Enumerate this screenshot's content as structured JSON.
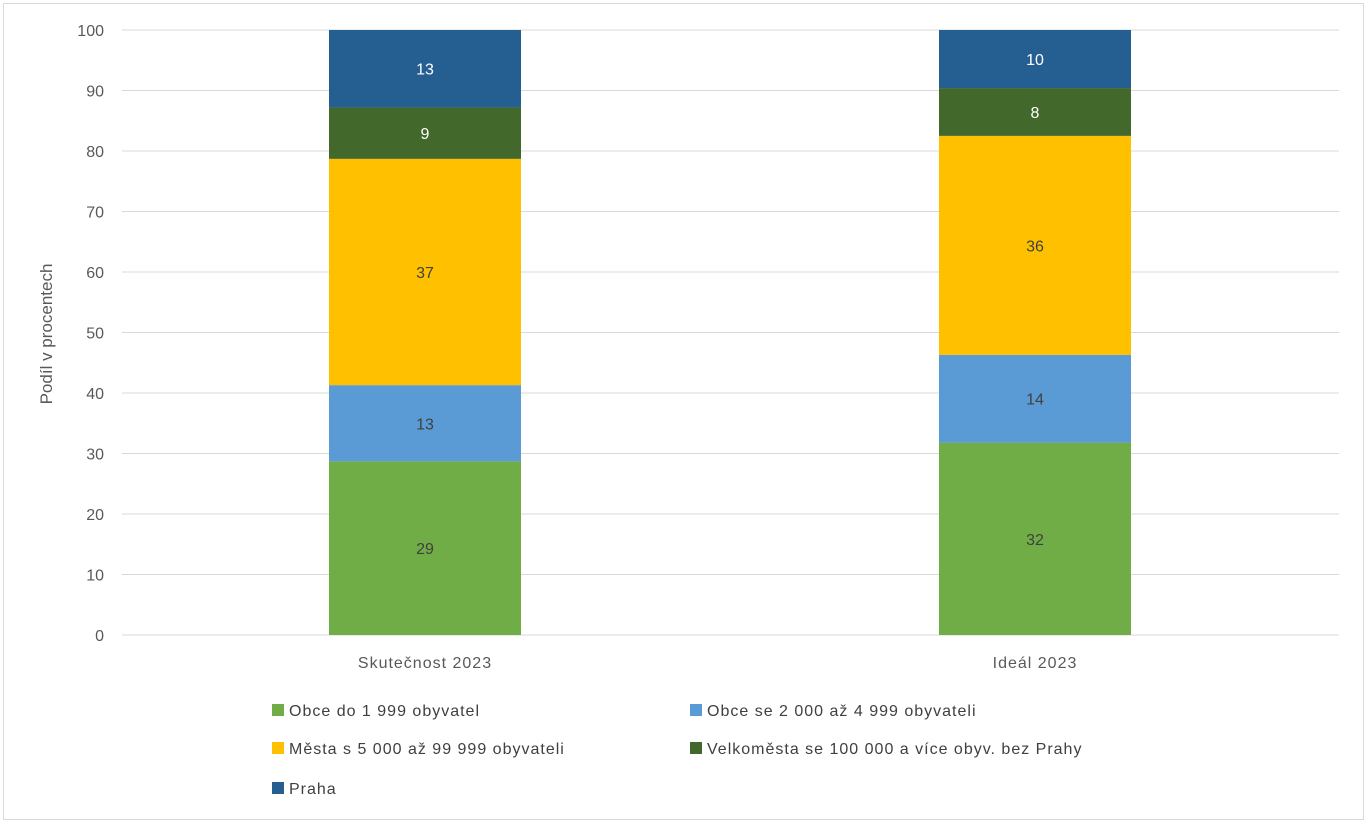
{
  "chart_data": {
    "type": "bar",
    "stacked": true,
    "categories": [
      "Skutečnost 2023",
      "Ideál 2023"
    ],
    "series": [
      {
        "name": "Obce do 1 999 obyvatel",
        "values": [
          29,
          32
        ],
        "color": "#70AD47",
        "label_color": "#404040"
      },
      {
        "name": "Obce se 2 000 až 4 999 obyvateli",
        "values": [
          13,
          14
        ],
        "color": "#5B9BD5",
        "label_color": "#404040"
      },
      {
        "name": "Města s 5 000 až 99 999 obyvateli",
        "values": [
          37,
          36
        ],
        "color": "#FFC000",
        "label_color": "#404040"
      },
      {
        "name": "Velkoměsta se 100 000 a více obyv. bez Prahy",
        "values": [
          9,
          8
        ],
        "color": "#43682B",
        "label_color": "#ffffff"
      },
      {
        "name": "Praha",
        "values": [
          13,
          10
        ],
        "color": "#255E91",
        "label_color": "#ffffff"
      }
    ],
    "bar_tops": [
      [
        28.7,
        41.3,
        78.7,
        87.2,
        100
      ],
      [
        31.8,
        46.3,
        82.5,
        90.4,
        100
      ]
    ],
    "ylabel": "Podíl v procentech",
    "xlabel": "",
    "ylim": [
      0,
      100
    ],
    "yticks": [
      0,
      10,
      20,
      30,
      40,
      50,
      60,
      70,
      80,
      90,
      100
    ],
    "grid": true,
    "legend_position": "bottom"
  }
}
